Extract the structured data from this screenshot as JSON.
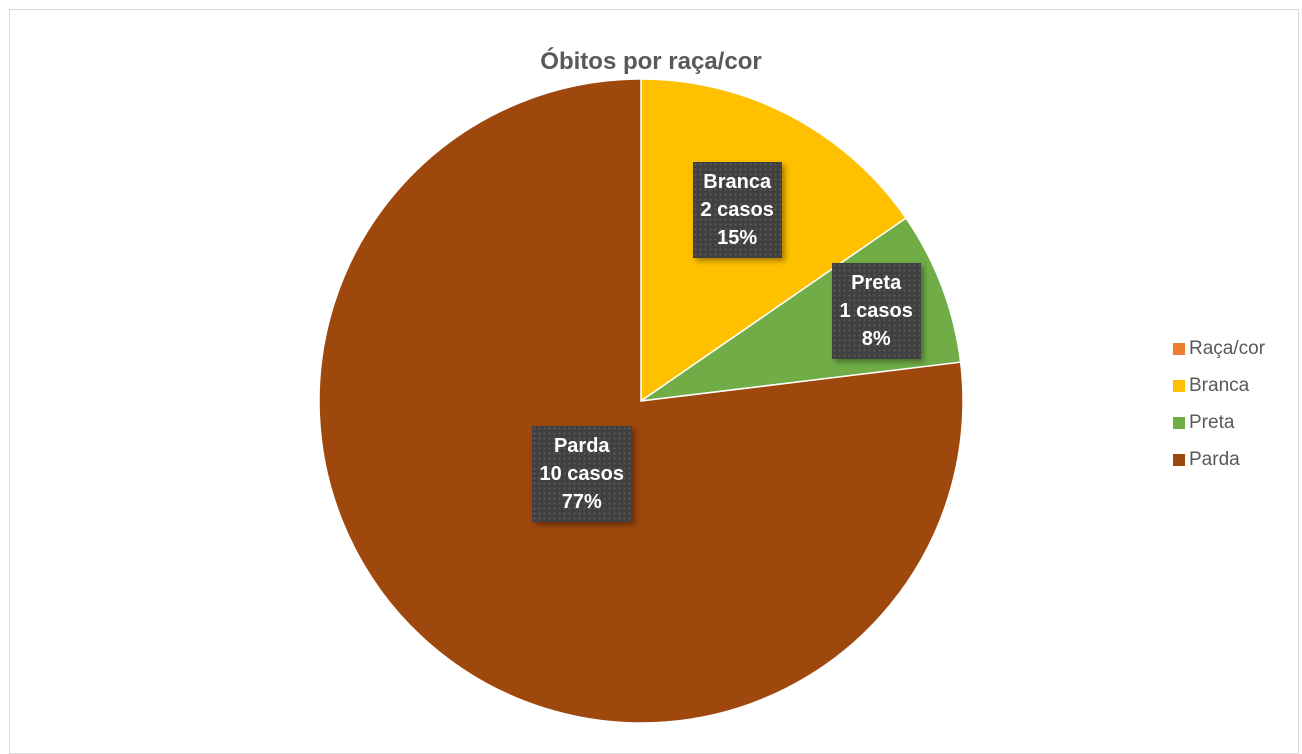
{
  "chart_data": {
    "type": "pie",
    "title": "Óbitos por raça/cor",
    "legend_position": "right",
    "legend": [
      {
        "name": "Raça/cor",
        "color": "#ed7d31"
      },
      {
        "name": "Branca",
        "color": "#ffc000"
      },
      {
        "name": "Preta",
        "color": "#70ad47"
      },
      {
        "name": "Parda",
        "color": "#9e480e"
      }
    ],
    "slices": [
      {
        "category": "Raça/cor",
        "value": 0,
        "percent": 0,
        "color": "#ed7d31"
      },
      {
        "category": "Branca",
        "value": 2,
        "percent": 15,
        "color": "#ffc000",
        "label_lines": [
          "Branca",
          "2 casos",
          "15%"
        ]
      },
      {
        "category": "Preta",
        "value": 1,
        "percent": 8,
        "color": "#70ad47",
        "label_lines": [
          "Preta",
          "1 casos",
          "8%"
        ]
      },
      {
        "category": "Parda",
        "value": 10,
        "percent": 77,
        "color": "#9e480e",
        "label_lines": [
          "Parda",
          "10 casos",
          "77%"
        ]
      }
    ]
  }
}
